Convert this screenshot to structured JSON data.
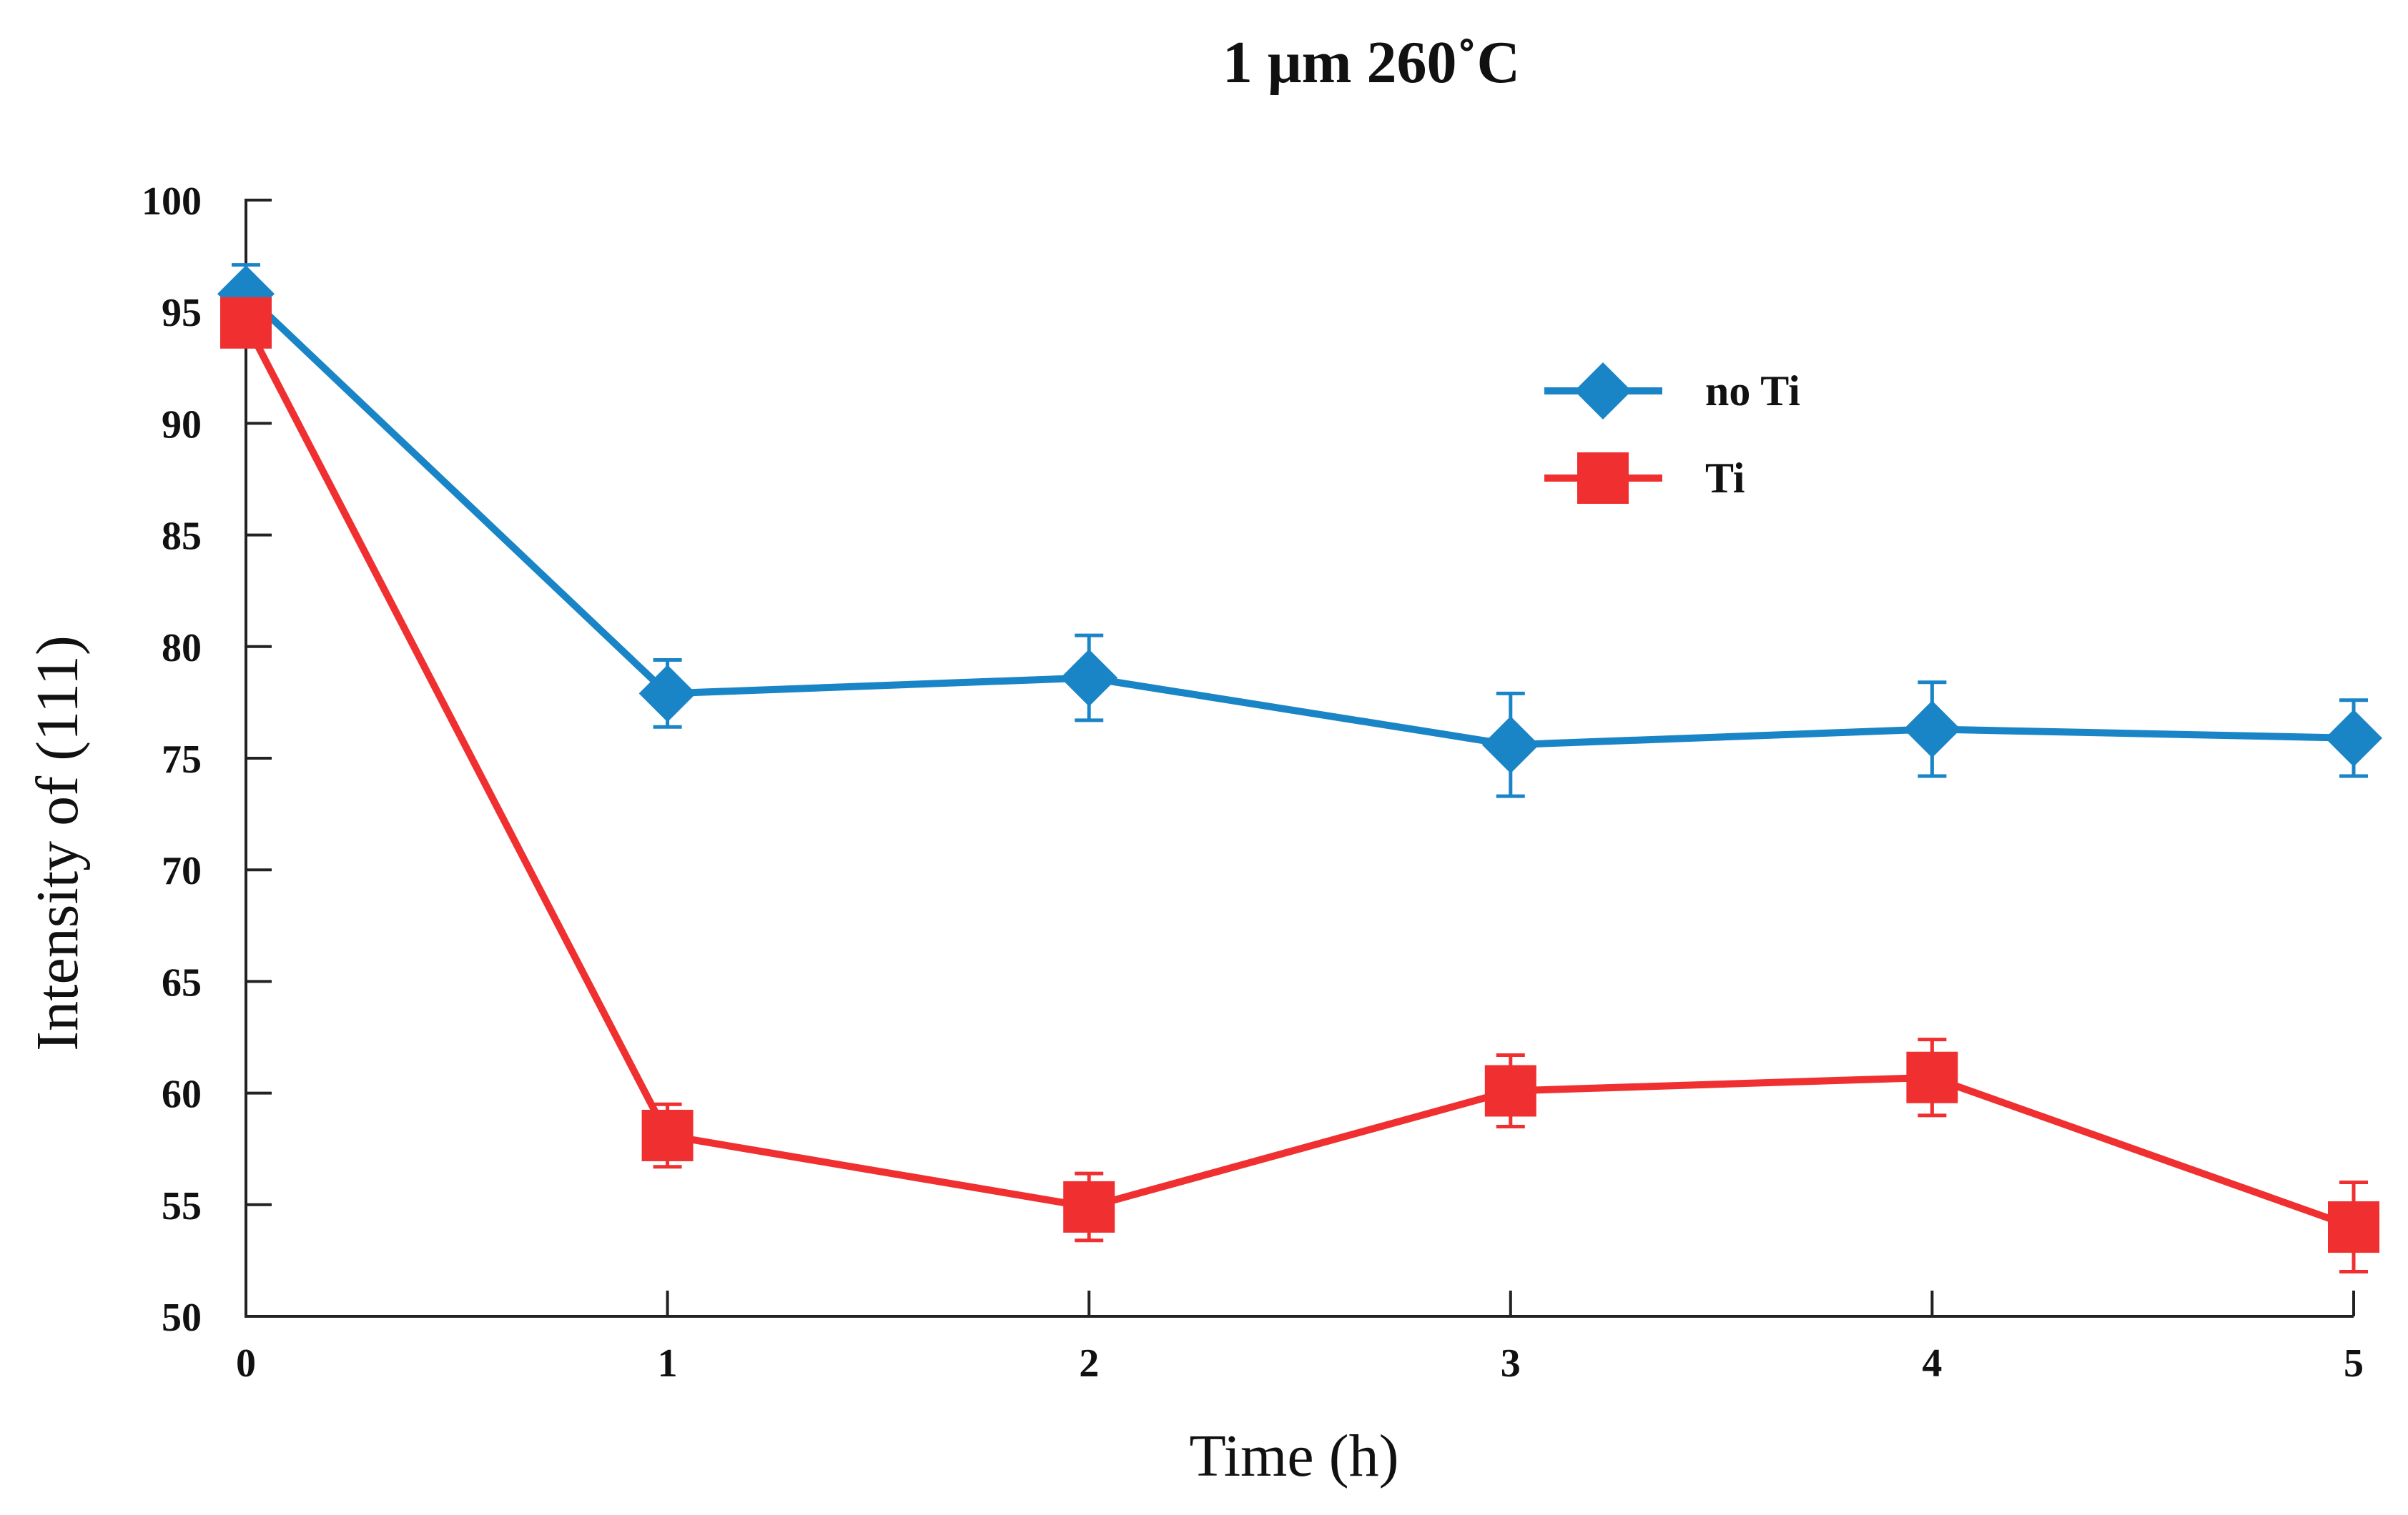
{
  "chart_data": {
    "type": "line",
    "title": "1 μm 260˚C",
    "xlabel": "Time (h)",
    "ylabel": "Intensity of (111)",
    "x": [
      0,
      1,
      2,
      3,
      4,
      5
    ],
    "xlim": [
      0,
      5
    ],
    "ylim": [
      50,
      100
    ],
    "x_ticks": [
      "0",
      "1",
      "2",
      "3",
      "4",
      "5"
    ],
    "y_ticks": [
      "50",
      "55",
      "60",
      "65",
      "70",
      "75",
      "80",
      "85",
      "90",
      "95",
      "100"
    ],
    "grid": false,
    "legend_position": "top-right",
    "series": [
      {
        "name": "no Ti",
        "color": "#1a85c6",
        "marker": "diamond",
        "values": [
          95.8,
          77.9,
          78.6,
          75.6,
          76.3,
          75.9
        ],
        "errors": [
          1.3,
          1.5,
          1.9,
          2.3,
          2.1,
          1.7
        ]
      },
      {
        "name": "Ti",
        "color": "#f03030",
        "marker": "square",
        "values": [
          94.5,
          58.1,
          54.9,
          60.1,
          60.7,
          54.0
        ],
        "errors": [
          0.5,
          1.4,
          1.5,
          1.6,
          1.7,
          2.0
        ]
      }
    ]
  }
}
